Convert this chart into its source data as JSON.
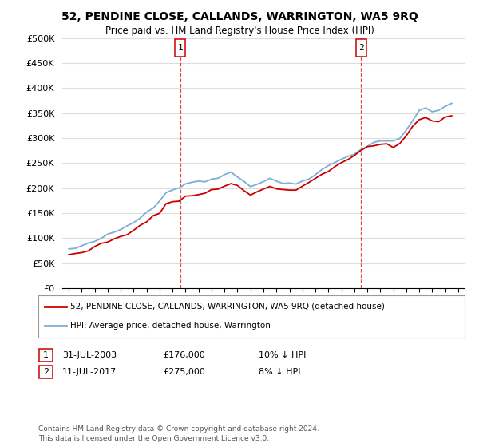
{
  "title": "52, PENDINE CLOSE, CALLANDS, WARRINGTON, WA5 9RQ",
  "subtitle": "Price paid vs. HM Land Registry's House Price Index (HPI)",
  "legend_property": "52, PENDINE CLOSE, CALLANDS, WARRINGTON, WA5 9RQ (detached house)",
  "legend_hpi": "HPI: Average price, detached house, Warrington",
  "transaction1_date": "31-JUL-2003",
  "transaction1_price": "£176,000",
  "transaction1_hpi": "10% ↓ HPI",
  "transaction1_label": "1",
  "transaction1_year": 2003.58,
  "transaction1_value": 176000,
  "transaction2_date": "11-JUL-2017",
  "transaction2_price": "£275,000",
  "transaction2_hpi": "8% ↓ HPI",
  "transaction2_label": "2",
  "transaction2_year": 2017.53,
  "transaction2_value": 275000,
  "footnote1": "Contains HM Land Registry data © Crown copyright and database right 2024.",
  "footnote2": "This data is licensed under the Open Government Licence v3.0.",
  "property_color": "#cc0000",
  "hpi_color": "#7bafd4",
  "dashed_line_color": "#cc0000",
  "bg_color": "#ffffff",
  "grid_color": "#dddddd",
  "ylim": [
    0,
    500000
  ],
  "yticks": [
    0,
    50000,
    100000,
    150000,
    200000,
    250000,
    300000,
    350000,
    400000,
    450000,
    500000
  ],
  "xlim_start": 1994.5,
  "xlim_end": 2025.5,
  "hpi_years": [
    1995,
    1995.5,
    1996,
    1996.5,
    1997,
    1997.5,
    1998,
    1998.5,
    1999,
    1999.5,
    2000,
    2000.5,
    2001,
    2001.5,
    2002,
    2002.5,
    2003,
    2003.5,
    2004,
    2004.5,
    2005,
    2005.5,
    2006,
    2006.5,
    2007,
    2007.5,
    2008,
    2008.5,
    2009,
    2009.5,
    2010,
    2010.5,
    2011,
    2011.5,
    2012,
    2012.5,
    2013,
    2013.5,
    2014,
    2014.5,
    2015,
    2015.5,
    2016,
    2016.5,
    2017,
    2017.5,
    2018,
    2018.5,
    2019,
    2019.5,
    2020,
    2020.5,
    2021,
    2021.5,
    2022,
    2022.5,
    2023,
    2023.5,
    2024,
    2024.5
  ],
  "hpi_values": [
    78000,
    80000,
    84000,
    88000,
    94000,
    100000,
    106000,
    111000,
    118000,
    124000,
    132000,
    141000,
    152000,
    163000,
    177000,
    192000,
    198000,
    200000,
    210000,
    214000,
    212000,
    213000,
    218000,
    222000,
    228000,
    232000,
    224000,
    213000,
    204000,
    208000,
    214000,
    217000,
    214000,
    211000,
    209000,
    210000,
    214000,
    221000,
    229000,
    237000,
    244000,
    251000,
    258000,
    264000,
    270000,
    278000,
    284000,
    290000,
    294000,
    297000,
    294000,
    300000,
    317000,
    334000,
    354000,
    359000,
    354000,
    356000,
    363000,
    368000
  ]
}
